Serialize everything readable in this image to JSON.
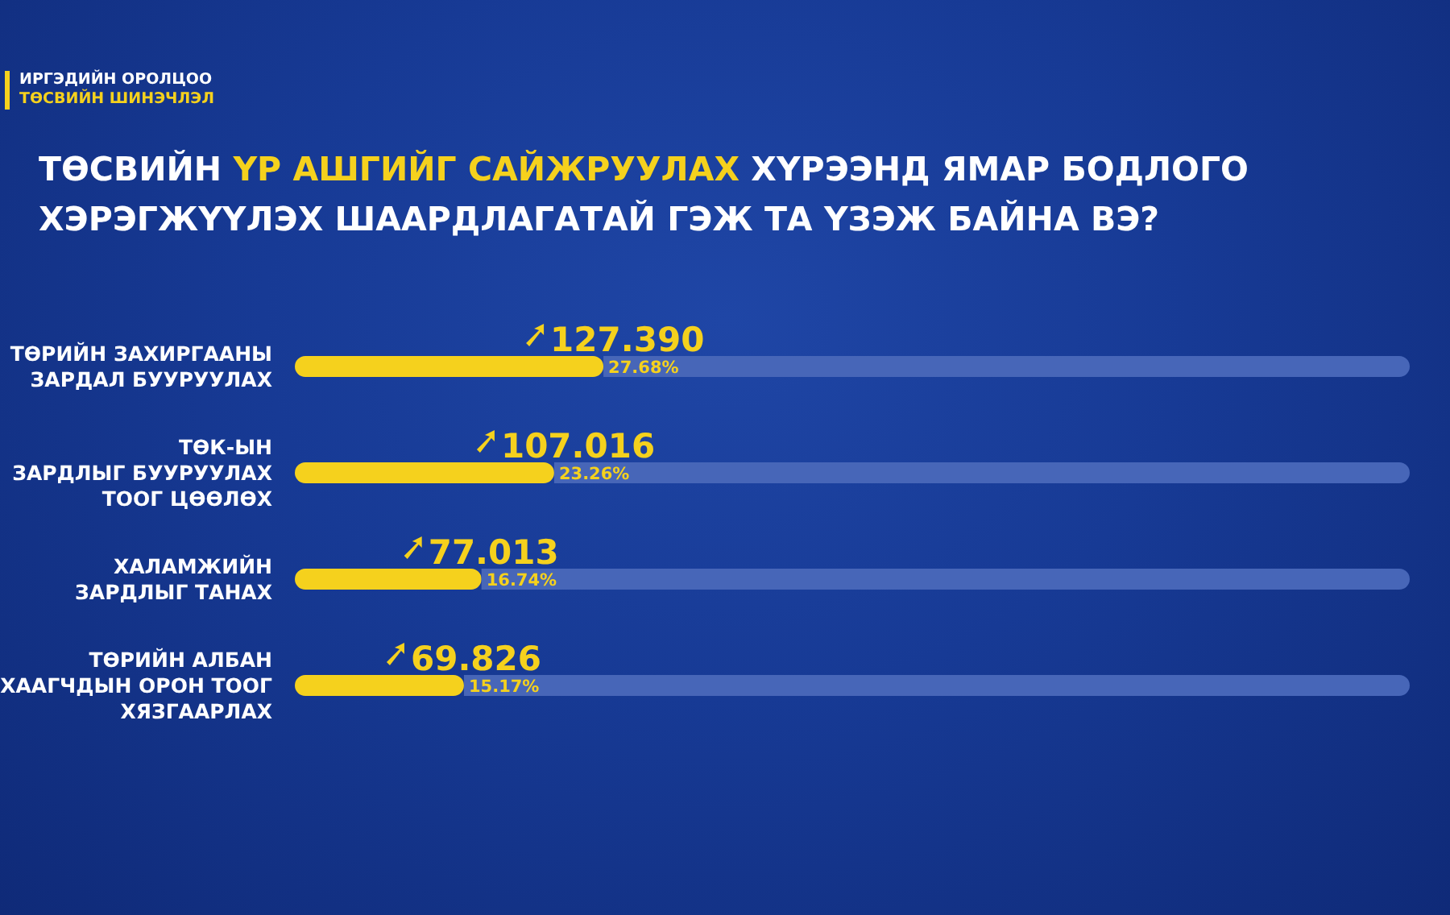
{
  "chart_data": {
    "type": "bar",
    "orientation": "horizontal",
    "title": "ТӨСВИЙН ҮР АШГИЙГ САЙЖРУУЛАХ ХҮРЭЭНД ЯМАР БОДЛОГО ХЭРЭГЖҮҮЛЭХ ШААРДЛАГАТАЙ ГЭЖ ТА ҮЗЭЖ БАЙНА ВЭ?",
    "annotations": [
      "ИРГЭДИЙН ОРОЛЦОО",
      "ТӨСВИЙН ШИНЭЧЛЭЛ",
      {
        "text": "127.390",
        "x": 27.68,
        "y": "ТӨРИЙН ЗАХИРГААНЫ\nЗАРДАЛ БУУРУУЛАХ"
      },
      {
        "text": "107.016",
        "x": 23.26,
        "y": "ТӨК-ЫН\nЗАРДЛЫГ БУУРУУЛАХ\nТООГ ЦӨӨЛӨХ"
      },
      {
        "text": "77.013",
        "x": 16.74,
        "y": "ХАЛАМЖИЙН\nЗАРДЛЫГ ТАНАХ"
      },
      {
        "text": "69.826",
        "x": 15.17,
        "y": "ТӨРИЙН АЛБАН\nХААГЧДЫН ОРОН ТООГ\nХЯЗГААРЛАХ"
      }
    ],
    "categories": [
      "ТӨРИЙН ЗАХИРГААНЫ\nЗАРДАЛ БУУРУУЛАХ",
      "ТӨК-ЫН\nЗАРДЛЫГ БУУРУУЛАХ\nТООГ ЦӨӨЛӨХ",
      "ХАЛАМЖИЙН\nЗАРДЛЫГ ТАНАХ",
      "ТӨРИЙН АЛБАН\nХААГЧДЫН ОРОН ТООГ\nХЯЗГААРЛАХ"
    ],
    "stacked": true,
    "series": [
      {
        "color": "#f5d11d",
        "values": [
          27.68,
          23.26,
          16.74,
          15.17
        ],
        "value_labels": [
          "27.68%",
          "23.26%",
          "16.74%",
          "15.17%"
        ]
      },
      {
        "color": "#4766b8",
        "values": [
          72.32,
          76.74,
          83.26,
          84.83
        ]
      }
    ],
    "xlim": [
      0,
      100
    ],
    "tick_labels": "y",
    "grid": false,
    "legend": false
  }
}
